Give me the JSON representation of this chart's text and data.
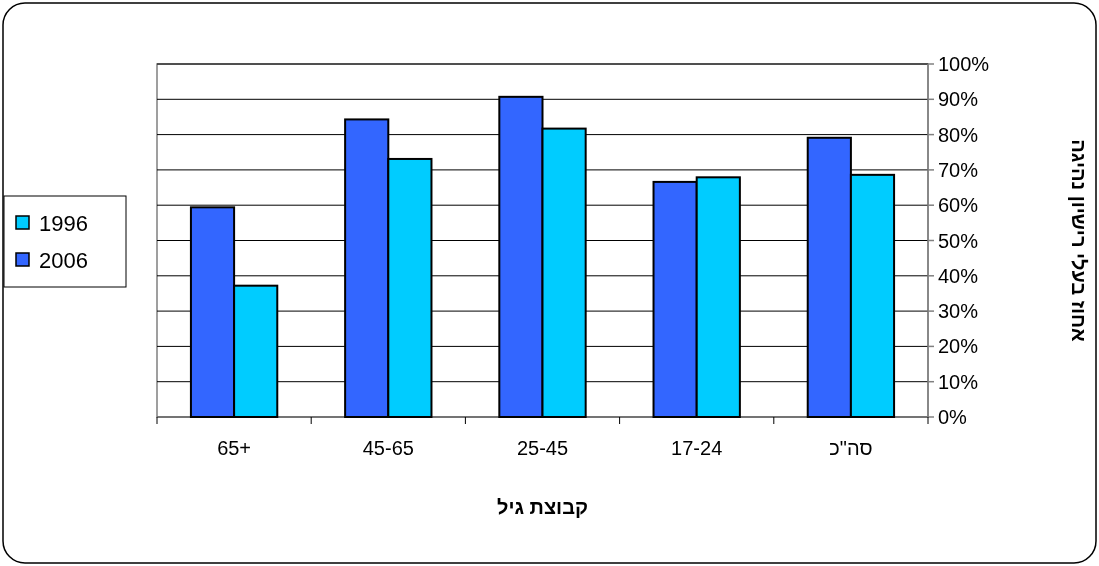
{
  "chart_data": {
    "type": "bar",
    "categories": [
      "65+",
      "45-65",
      "25-45",
      "17-24",
      "סה\"כ"
    ],
    "series": [
      {
        "name": "2006",
        "color": "#3366ff",
        "values": [
          59.4,
          84.3,
          90.7,
          66.6,
          79.1
        ]
      },
      {
        "name": "1996",
        "color": "#00ccff",
        "values": [
          37.2,
          73.1,
          81.7,
          67.9,
          68.6
        ]
      }
    ],
    "xlabel": "קבוצת גיל",
    "ylabel": "אחוז בעלי רישיון נהיגה",
    "ylim": [
      0,
      100
    ],
    "yticks": [
      {
        "value": 0,
        "label": "0%"
      },
      {
        "value": 10,
        "label": "10%"
      },
      {
        "value": 20,
        "label": "20%"
      },
      {
        "value": 30,
        "label": "30%"
      },
      {
        "value": 40,
        "label": "40%"
      },
      {
        "value": 50,
        "label": "50%"
      },
      {
        "value": 60,
        "label": "60%"
      },
      {
        "value": 70,
        "label": "70%"
      },
      {
        "value": 80,
        "label": "80%"
      },
      {
        "value": 90,
        "label": "90%"
      },
      {
        "value": 100,
        "label": "100%"
      }
    ],
    "grid": "y",
    "legend": "left"
  }
}
